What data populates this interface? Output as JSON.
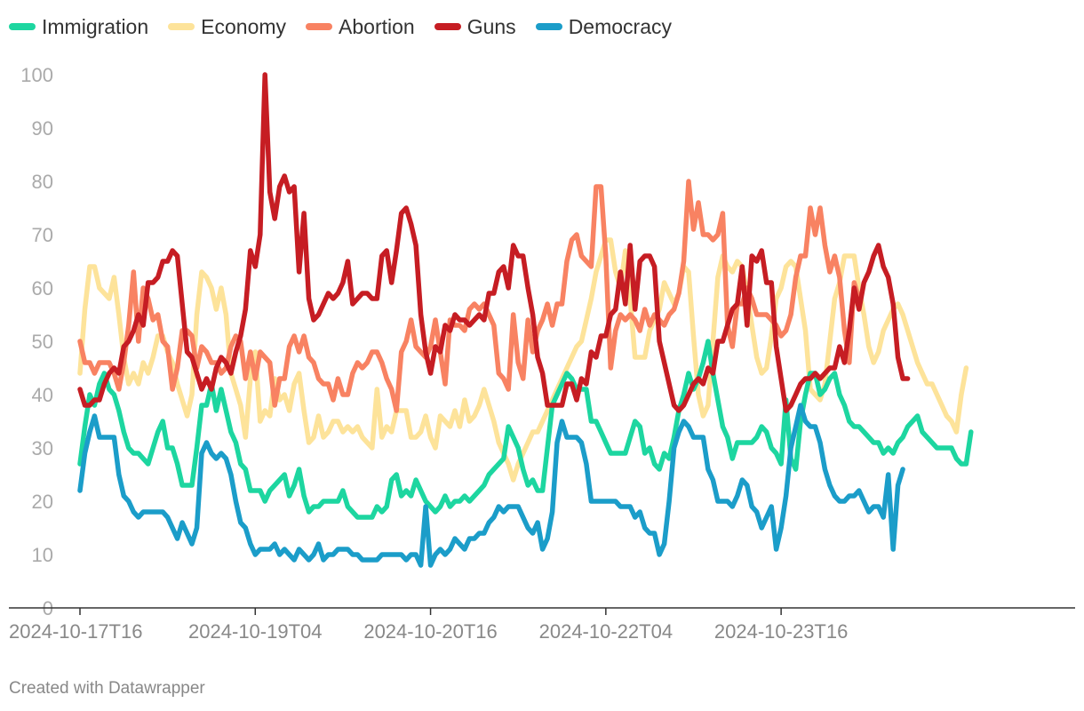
{
  "chart_data": {
    "type": "line",
    "title": "",
    "xlabel": "",
    "ylabel": "",
    "ylim": [
      0,
      100
    ],
    "yticks": [
      0,
      10,
      20,
      30,
      40,
      50,
      60,
      70,
      80,
      90,
      100
    ],
    "x_range": [
      0,
      190
    ],
    "x_ticks": [
      {
        "pos": 0,
        "label": "2024-10-17T16"
      },
      {
        "pos": 36,
        "label": "2024-10-19T04"
      },
      {
        "pos": 72,
        "label": "2024-10-20T16"
      },
      {
        "pos": 108,
        "label": "2024-10-22T04"
      },
      {
        "pos": 144,
        "label": "2024-10-23T16"
      }
    ],
    "legend_position": "top-left",
    "series": [
      {
        "name": "Economy",
        "color": "#fde39a",
        "values": [
          44,
          56,
          64,
          64,
          60,
          59,
          58,
          62,
          55,
          47,
          42,
          44,
          42,
          46,
          44,
          47,
          51,
          51,
          48,
          46,
          42,
          39,
          36,
          40,
          55,
          63,
          62,
          60,
          56,
          60,
          55,
          44,
          41,
          38,
          32,
          43,
          48,
          35,
          37,
          36,
          43,
          39,
          40,
          37,
          42,
          44,
          37,
          31,
          32,
          36,
          32,
          33,
          35,
          35,
          33,
          34,
          33,
          34,
          32,
          31,
          30,
          41,
          32,
          34,
          33,
          37,
          37,
          37,
          32,
          32,
          33,
          36,
          32,
          30,
          36,
          35,
          34,
          37,
          34,
          39,
          35,
          36,
          38,
          41,
          38,
          35,
          31,
          29,
          27,
          24,
          27,
          29,
          31,
          33,
          33,
          35,
          37,
          39,
          41,
          43,
          45,
          47,
          49,
          50,
          54,
          58,
          63,
          66,
          69,
          69,
          63,
          60,
          67,
          58,
          47,
          47,
          47,
          52,
          54,
          56,
          61,
          59,
          57,
          59,
          64,
          63,
          51,
          40,
          36,
          38,
          50,
          62,
          66,
          64,
          63,
          65,
          64,
          59,
          53,
          47,
          44,
          45,
          51,
          58,
          60,
          64,
          65,
          64,
          58,
          52,
          41,
          40,
          39,
          42,
          50,
          58,
          61,
          66,
          66,
          66,
          60,
          55,
          49,
          46,
          48,
          52,
          54,
          56,
          57,
          55,
          52,
          49,
          46,
          44,
          42,
          42,
          40,
          38,
          36,
          35,
          33,
          40,
          45
        ]
      },
      {
        "name": "Abortion",
        "color": "#f88262",
        "values": [
          50,
          46,
          46,
          44,
          46,
          46,
          46,
          44,
          41,
          46,
          53,
          63,
          50,
          60,
          58,
          54,
          55,
          50,
          49,
          41,
          45,
          52,
          52,
          51,
          45,
          49,
          48,
          46,
          46,
          44,
          45,
          49,
          51,
          50,
          43,
          48,
          43,
          48,
          47,
          46,
          38,
          43,
          43,
          49,
          51,
          48,
          51,
          47,
          46,
          43,
          42,
          42,
          39,
          43,
          40,
          40,
          44,
          46,
          45,
          46,
          48,
          48,
          46,
          43,
          41,
          37,
          48,
          50,
          54,
          49,
          48,
          47,
          49,
          54,
          48,
          42,
          54,
          53,
          53,
          52,
          56,
          57,
          56,
          57,
          55,
          53,
          44,
          43,
          41,
          55,
          46,
          43,
          54,
          48,
          52,
          54,
          57,
          53,
          57,
          57,
          65,
          69,
          70,
          66,
          65,
          64,
          79,
          79,
          66,
          45,
          52,
          55,
          54,
          55,
          54,
          52,
          56,
          53,
          55,
          54,
          53,
          55,
          56,
          59,
          65,
          80,
          71,
          76,
          70,
          70,
          69,
          70,
          74,
          53,
          49,
          57,
          57,
          60,
          58,
          55,
          55,
          55,
          54,
          53,
          51,
          52,
          55,
          62,
          66,
          66,
          75,
          70,
          75,
          68,
          63,
          66,
          62,
          52,
          46,
          61,
          58
        ]
      },
      {
        "name": "Immigration",
        "color": "#1dd6a0",
        "values": [
          27,
          34,
          40,
          38,
          42,
          44,
          41,
          40,
          37,
          33,
          30,
          29,
          29,
          28,
          27,
          30,
          33,
          35,
          30,
          30,
          27,
          23,
          23,
          23,
          30,
          38,
          38,
          42,
          37,
          41,
          37,
          33,
          31,
          27,
          26,
          22,
          22,
          22,
          20,
          22,
          23,
          24,
          25,
          21,
          23,
          26,
          21,
          18,
          19,
          19,
          20,
          20,
          20,
          20,
          22,
          19,
          18,
          17,
          17,
          17,
          17,
          19,
          18,
          19,
          24,
          25,
          21,
          22,
          21,
          24,
          22,
          20,
          19,
          18,
          19,
          21,
          19,
          20,
          20,
          21,
          20,
          21,
          22,
          23,
          25,
          26,
          27,
          28,
          34,
          32,
          30,
          26,
          23,
          24,
          22,
          22,
          30,
          38,
          40,
          42,
          44,
          43,
          41,
          41,
          41,
          35,
          35,
          33,
          31,
          29,
          29,
          29,
          29,
          32,
          35,
          34,
          29,
          30,
          27,
          26,
          29,
          28,
          32,
          37,
          40,
          44,
          41,
          43,
          46,
          50,
          44,
          39,
          34,
          32,
          28,
          31,
          31,
          31,
          31,
          32,
          34,
          33,
          30,
          29,
          27,
          39,
          28,
          26,
          35,
          40,
          44,
          44,
          40,
          41,
          43,
          44,
          40,
          38,
          35,
          34,
          34,
          33,
          32,
          31,
          31,
          29,
          30,
          29,
          31,
          32,
          34,
          35,
          36,
          33,
          32,
          31,
          30,
          30,
          30,
          30,
          28,
          27,
          27,
          33
        ]
      },
      {
        "name": "Guns",
        "color": "#c61d23",
        "values": [
          41,
          38,
          38,
          39,
          39,
          42,
          44,
          45,
          44,
          49,
          50,
          52,
          55,
          53,
          61,
          61,
          62,
          65,
          65,
          67,
          66,
          57,
          48,
          47,
          44,
          41,
          43,
          41,
          45,
          47,
          46,
          44,
          48,
          51,
          56,
          67,
          64,
          70,
          100,
          78,
          73,
          79,
          81,
          78,
          79,
          63,
          74,
          58,
          54,
          55,
          57,
          59,
          58,
          59,
          61,
          65,
          57,
          58,
          59,
          59,
          58,
          58,
          66,
          67,
          61,
          67,
          74,
          75,
          72,
          68,
          55,
          48,
          44,
          49,
          48,
          53,
          52,
          55,
          54,
          54,
          53,
          54,
          55,
          54,
          59,
          59,
          63,
          64,
          60,
          68,
          66,
          66,
          60,
          55,
          47,
          44,
          38,
          38,
          38,
          38,
          42,
          42,
          39,
          43,
          42,
          48,
          47,
          51,
          51,
          55,
          56,
          63,
          57,
          68,
          56,
          65,
          66,
          66,
          64,
          50,
          46,
          42,
          38,
          37,
          38,
          40,
          42,
          43,
          42,
          45,
          44,
          50,
          50,
          53,
          56,
          57,
          64,
          53,
          66,
          65,
          67,
          61,
          61,
          49,
          43,
          37,
          38,
          40,
          42,
          43,
          43,
          44,
          43,
          44,
          45,
          45,
          49,
          46,
          52,
          60,
          56,
          61,
          63,
          66,
          68,
          64,
          62,
          57,
          47,
          43,
          43
        ]
      },
      {
        "name": "Democracy",
        "color": "#1b9dc9",
        "values": [
          22,
          29,
          33,
          36,
          32,
          32,
          32,
          32,
          25,
          21,
          20,
          18,
          17,
          18,
          18,
          18,
          18,
          18,
          17,
          15,
          13,
          16,
          14,
          12,
          15,
          29,
          31,
          29,
          28,
          29,
          28,
          25,
          20,
          16,
          15,
          12,
          10,
          11,
          11,
          11,
          12,
          10,
          11,
          10,
          9,
          11,
          10,
          9,
          10,
          12,
          9,
          10,
          10,
          11,
          11,
          11,
          10,
          10,
          9,
          9,
          9,
          9,
          10,
          10,
          10,
          10,
          10,
          9,
          10,
          10,
          8,
          19,
          8,
          10,
          11,
          10,
          11,
          13,
          12,
          11,
          13,
          13,
          14,
          14,
          16,
          17,
          19,
          18,
          19,
          19,
          19,
          17,
          15,
          14,
          16,
          11,
          13,
          18,
          31,
          35,
          32,
          32,
          32,
          31,
          27,
          20,
          20,
          20,
          20,
          20,
          20,
          19,
          19,
          19,
          17,
          18,
          15,
          14,
          14,
          10,
          12,
          20,
          30,
          33,
          35,
          34,
          32,
          32,
          32,
          26,
          24,
          20,
          20,
          20,
          19,
          21,
          24,
          23,
          19,
          18,
          15,
          17,
          19,
          11,
          15,
          21,
          30,
          34,
          38,
          35,
          34,
          34,
          31,
          26,
          23,
          21,
          20,
          20,
          21,
          21,
          22,
          20,
          18,
          19,
          19,
          17,
          25,
          11,
          23,
          26
        ]
      }
    ]
  },
  "footer": {
    "credit": "Created with Datawrapper"
  }
}
